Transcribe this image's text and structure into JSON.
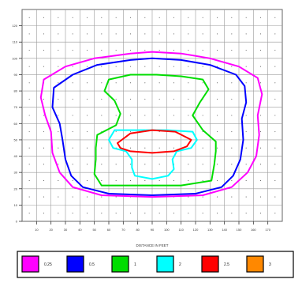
{
  "chart_data": {
    "type": "contour",
    "xlabel": "DISTANCE IN FEET",
    "ylabel": "",
    "x_ticks": [
      "10",
      "20",
      "30",
      "40",
      "50",
      "60",
      "70",
      "80",
      "90",
      "100",
      "110",
      "120",
      "130",
      "140",
      "150",
      "160",
      "170"
    ],
    "y_ticks": [
      "0",
      "10",
      "20",
      "30",
      "40",
      "50",
      "60",
      "70",
      "80",
      "90",
      "100",
      "110",
      "120"
    ],
    "xlim": [
      0,
      18
    ],
    "ylim": [
      0,
      13
    ],
    "grid": true,
    "legend_position": "bottom",
    "legend": [
      {
        "label": "0.25",
        "color": "#ff00ff"
      },
      {
        "label": "0.5",
        "color": "#0000ff"
      },
      {
        "label": "1",
        "color": "#00dd00"
      },
      {
        "label": "2",
        "color": "#00ffff"
      },
      {
        "label": "2.5",
        "color": "#ff0000"
      },
      {
        "label": "3",
        "color": "#ff8800"
      }
    ],
    "contours": [
      {
        "level": "0.25",
        "color": "#ff00ff",
        "points": [
          [
            7.5,
            10.3
          ],
          [
            9.0,
            10.4
          ],
          [
            11.0,
            10.3
          ],
          [
            13.0,
            10.0
          ],
          [
            15.0,
            9.5
          ],
          [
            16.3,
            8.8
          ],
          [
            16.6,
            7.8
          ],
          [
            16.3,
            6.5
          ],
          [
            16.4,
            5.3
          ],
          [
            16.2,
            4.0
          ],
          [
            15.6,
            3.0
          ],
          [
            14.5,
            2.1
          ],
          [
            12.5,
            1.6
          ],
          [
            9.0,
            1.5
          ],
          [
            5.5,
            1.6
          ],
          [
            3.5,
            2.1
          ],
          [
            2.6,
            3.0
          ],
          [
            2.1,
            4.2
          ],
          [
            2.0,
            5.5
          ],
          [
            1.6,
            6.5
          ],
          [
            1.3,
            7.6
          ],
          [
            1.5,
            8.7
          ],
          [
            3.0,
            9.5
          ],
          [
            5.0,
            10.0
          ],
          [
            7.5,
            10.3
          ]
        ]
      },
      {
        "level": "0.5",
        "color": "#0000ff",
        "points": [
          [
            7.5,
            9.9
          ],
          [
            9.0,
            10.0
          ],
          [
            11.0,
            9.9
          ],
          [
            13.0,
            9.6
          ],
          [
            14.8,
            9.0
          ],
          [
            15.4,
            8.3
          ],
          [
            15.5,
            7.3
          ],
          [
            15.2,
            6.3
          ],
          [
            15.3,
            5.0
          ],
          [
            15.1,
            3.8
          ],
          [
            14.6,
            2.8
          ],
          [
            13.8,
            2.1
          ],
          [
            12.0,
            1.7
          ],
          [
            9.0,
            1.6
          ],
          [
            6.0,
            1.7
          ],
          [
            4.2,
            2.1
          ],
          [
            3.4,
            2.8
          ],
          [
            3.0,
            3.8
          ],
          [
            2.8,
            5.0
          ],
          [
            2.6,
            6.0
          ],
          [
            2.1,
            7.0
          ],
          [
            2.2,
            8.2
          ],
          [
            3.5,
            9.0
          ],
          [
            5.2,
            9.6
          ],
          [
            7.5,
            9.9
          ]
        ]
      },
      {
        "level": "1",
        "color": "#00dd00",
        "points": [
          [
            7.5,
            9.0
          ],
          [
            9.3,
            9.0
          ],
          [
            11.0,
            8.9
          ],
          [
            12.5,
            8.7
          ],
          [
            12.9,
            8.1
          ],
          [
            12.3,
            7.3
          ],
          [
            11.8,
            6.5
          ],
          [
            12.5,
            5.6
          ],
          [
            13.4,
            4.9
          ],
          [
            13.4,
            4.3
          ],
          [
            13.3,
            3.5
          ],
          [
            13.1,
            2.5
          ],
          [
            11.0,
            2.2
          ],
          [
            8.0,
            2.2
          ],
          [
            5.5,
            2.2
          ],
          [
            5.0,
            2.9
          ],
          [
            5.1,
            3.8
          ],
          [
            5.1,
            4.5
          ],
          [
            5.2,
            5.3
          ],
          [
            6.5,
            5.9
          ],
          [
            6.8,
            6.6
          ],
          [
            6.4,
            7.4
          ],
          [
            5.7,
            8.0
          ],
          [
            6.0,
            8.7
          ],
          [
            7.5,
            9.0
          ]
        ]
      },
      {
        "level": "2",
        "color": "#00ffff",
        "points": [
          [
            6.4,
            5.6
          ],
          [
            8.0,
            5.6
          ],
          [
            10.0,
            5.6
          ],
          [
            11.8,
            5.5
          ],
          [
            12.1,
            5.0
          ],
          [
            11.7,
            4.5
          ],
          [
            10.7,
            4.3
          ],
          [
            10.4,
            3.8
          ],
          [
            10.5,
            3.2
          ],
          [
            10.1,
            2.8
          ],
          [
            9.0,
            2.6
          ],
          [
            7.8,
            2.8
          ],
          [
            7.6,
            3.3
          ],
          [
            7.6,
            3.8
          ],
          [
            7.2,
            4.3
          ],
          [
            6.3,
            4.5
          ],
          [
            6.0,
            5.0
          ],
          [
            6.4,
            5.6
          ]
        ]
      },
      {
        "level": "2.5",
        "color": "#ff0000",
        "points": [
          [
            6.6,
            4.8
          ],
          [
            7.5,
            5.4
          ],
          [
            9.0,
            5.6
          ],
          [
            10.6,
            5.5
          ],
          [
            11.7,
            5.0
          ],
          [
            11.4,
            4.6
          ],
          [
            10.5,
            4.3
          ],
          [
            9.0,
            4.2
          ],
          [
            7.5,
            4.3
          ],
          [
            6.8,
            4.5
          ],
          [
            6.6,
            4.8
          ]
        ]
      }
    ]
  }
}
